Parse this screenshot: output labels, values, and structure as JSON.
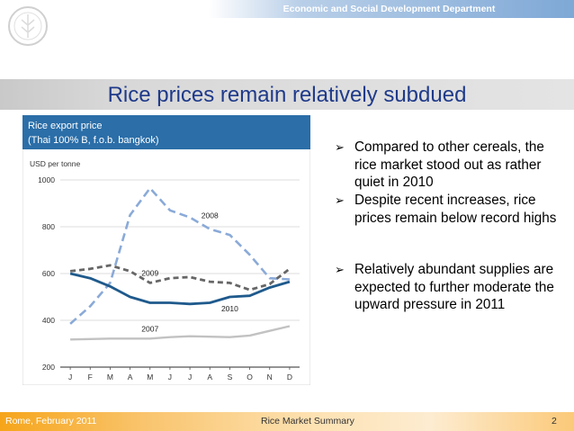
{
  "header": {
    "department": "Economic and Social Development Department"
  },
  "slide": {
    "title": "Rice prices remain relatively subdued",
    "bullets": [
      "Compared to other cereals, the rice market stood out as rather quiet in 2010",
      "Despite recent increases, rice prices remain below record highs",
      "Relatively abundant supplies are expected to further moderate the upward pressure in 2011"
    ],
    "bullet_glyph": "➢"
  },
  "footer": {
    "left": "Rome, February 2011",
    "center": "Rice Market Summary",
    "page": "2"
  },
  "chart_data": {
    "type": "line",
    "title": "Rice export price",
    "subtitle": "(Thai 100% B, f.o.b. bangkok)",
    "ylabel": "USD per tonne",
    "categories": [
      "J",
      "F",
      "M",
      "A",
      "M",
      "J",
      "J",
      "A",
      "S",
      "O",
      "N",
      "D"
    ],
    "ylim": [
      200,
      1000
    ],
    "yticks": [
      200,
      400,
      600,
      800,
      1000
    ],
    "grid": true,
    "series": [
      {
        "name": "2008",
        "color": "#8aaad8",
        "dash": "long-dash",
        "values": [
          385,
          460,
          560,
          850,
          965,
          870,
          840,
          790,
          765,
          680,
          580,
          575
        ]
      },
      {
        "name": "2009",
        "color": "#666666",
        "dash": "dash",
        "values": [
          610,
          620,
          635,
          610,
          560,
          580,
          585,
          565,
          560,
          530,
          555,
          620
        ]
      },
      {
        "name": "2010",
        "color": "#1f5a8c",
        "dash": "solid",
        "values": [
          600,
          580,
          545,
          500,
          475,
          475,
          470,
          475,
          500,
          505,
          540,
          565
        ]
      },
      {
        "name": "2007",
        "color": "#c2c2c2",
        "dash": "solid",
        "values": [
          318,
          320,
          322,
          322,
          322,
          328,
          332,
          330,
          328,
          335,
          355,
          375
        ]
      }
    ]
  }
}
